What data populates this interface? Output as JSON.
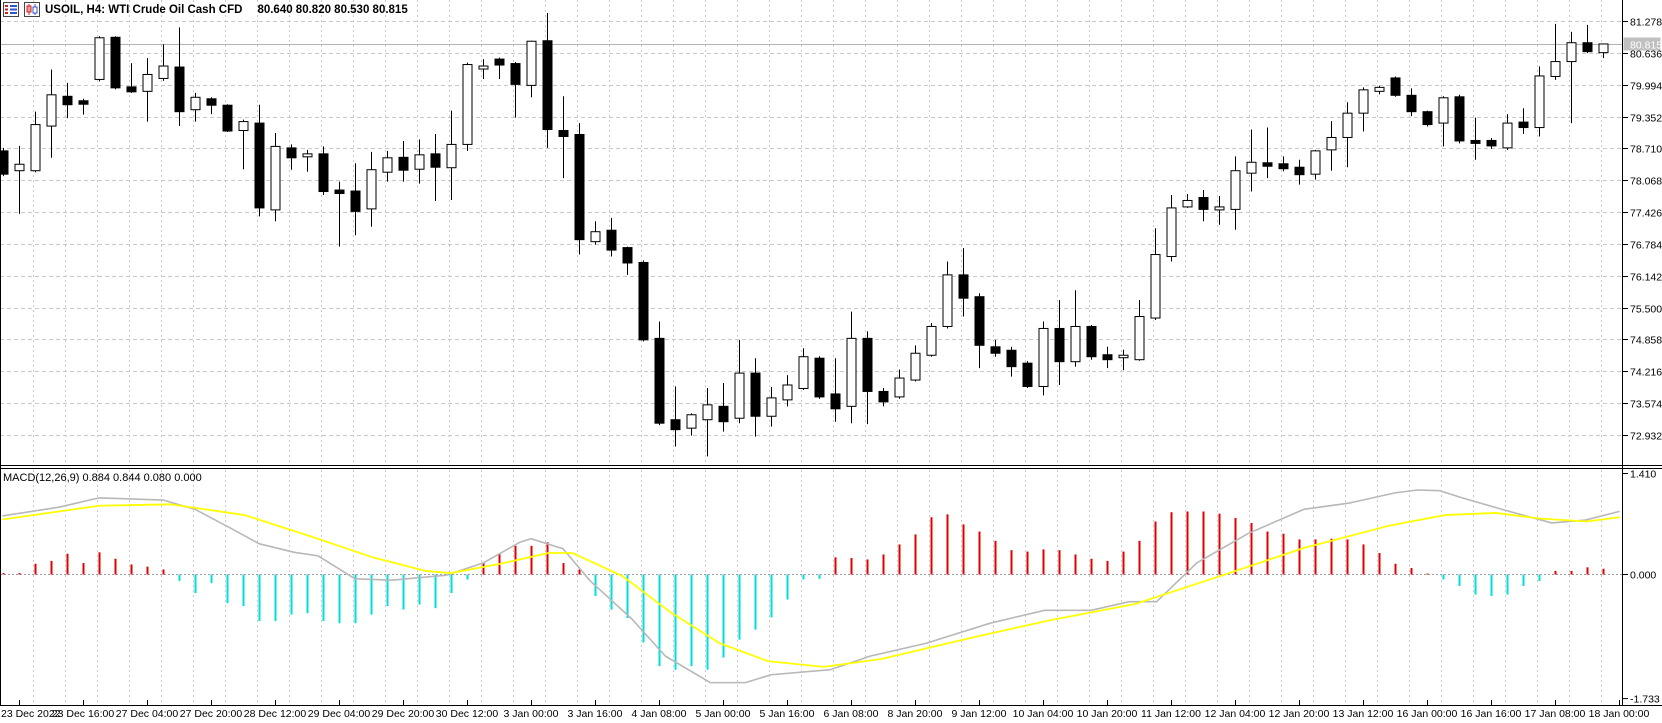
{
  "header": {
    "icons": [
      "quotes-list-icon",
      "candlestick-chart-icon"
    ],
    "symbol_info": "USOIL, H4: WTI Crude Oil Cash CFD",
    "ohlc_values": "80.640 80.820 80.530 80.815"
  },
  "indicator": {
    "label": "MACD(12,26,9) 0.884 0.844 0.080 0.000"
  },
  "price_axis": {
    "labels": [
      "81.278",
      "80.636",
      "79.994",
      "79.352",
      "78.710",
      "78.068",
      "77.426",
      "76.784",
      "76.142",
      "75.500",
      "74.858",
      "74.216",
      "73.574",
      "72.932"
    ],
    "current_label": "80.815"
  },
  "macd_axis": {
    "labels": [
      {
        "text": "1.410",
        "value": 1.41
      },
      {
        "text": "0.000",
        "value": 0.0
      },
      {
        "text": "-1.733",
        "value": -1.733
      }
    ]
  },
  "time_axis": {
    "labels": [
      "23 Dec 2022",
      "23 Dec 16:00",
      "27 Dec 04:00",
      "27 Dec 20:00",
      "28 Dec 12:00",
      "29 Dec 04:00",
      "29 Dec 20:00",
      "30 Dec 12:00",
      "3 Jan 00:00",
      "3 Jan 16:00",
      "4 Jan 08:00",
      "5 Jan 00:00",
      "5 Jan 16:00",
      "6 Jan 08:00",
      "8 Jan 20:00",
      "9 Jan 12:00",
      "10 Jan 04:00",
      "10 Jan 20:00",
      "11 Jan 12:00",
      "12 Jan 04:00",
      "12 Jan 20:00",
      "13 Jan 12:00",
      "16 Jan 00:00",
      "16 Jan 16:00",
      "17 Jan 08:00",
      "18 Jan 00:00"
    ]
  },
  "colors": {
    "background": "#ffffff",
    "grid": "#c9c9c9",
    "current_price_line": "#b3b3b3",
    "bull_body": "#ffffff",
    "bear_body": "#000000",
    "candle_outline": "#000000",
    "hist_positive": "#e00000",
    "hist_negative": "#00dede",
    "macd_line": "#b8b8b8",
    "signal_line": "#ffff00",
    "price_box_bg": "#c0c0c0",
    "price_box_text": "#ffffff",
    "axis_text": "#000000"
  },
  "chart_data": {
    "type": "candlestick+macd",
    "symbol": "USOIL",
    "timeframe": "H4",
    "description": "WTI Crude Oil Cash CFD",
    "current_bar": {
      "open": 80.64,
      "high": 80.82,
      "low": 80.53,
      "close": 80.815
    },
    "current_price": 80.815,
    "price_ylim": [
      72.29,
      81.47
    ],
    "macd_ylim": [
      -1.82,
      1.46
    ],
    "macd_settings": [
      12,
      26,
      9
    ],
    "macd_current_values": [
      0.884,
      0.844,
      0.08,
      0.0
    ],
    "candles_ohlc": [
      [
        78.66,
        78.72,
        78.15,
        78.19
      ],
      [
        78.26,
        78.76,
        77.39,
        78.39
      ],
      [
        78.26,
        79.45,
        78.23,
        79.19
      ],
      [
        79.16,
        80.3,
        78.52,
        79.79
      ],
      [
        79.76,
        80.03,
        79.32,
        79.59
      ],
      [
        79.67,
        79.71,
        79.39,
        79.6
      ],
      [
        80.1,
        80.97,
        80.06,
        80.94
      ],
      [
        80.95,
        80.97,
        79.9,
        79.93
      ],
      [
        79.95,
        80.43,
        79.83,
        79.85
      ],
      [
        79.86,
        80.53,
        79.25,
        80.2
      ],
      [
        80.12,
        80.81,
        80.07,
        80.37
      ],
      [
        80.35,
        81.15,
        79.16,
        79.45
      ],
      [
        79.49,
        79.83,
        79.25,
        79.74
      ],
      [
        79.71,
        79.74,
        79.4,
        79.58
      ],
      [
        79.58,
        79.6,
        79.04,
        79.06
      ],
      [
        79.07,
        79.29,
        78.29,
        79.25
      ],
      [
        79.22,
        79.59,
        77.34,
        77.51
      ],
      [
        77.47,
        79.02,
        77.24,
        78.75
      ],
      [
        78.72,
        78.79,
        78.28,
        78.52
      ],
      [
        78.54,
        78.68,
        78.24,
        78.6
      ],
      [
        78.6,
        78.75,
        77.77,
        77.84
      ],
      [
        77.87,
        78.04,
        76.73,
        77.8
      ],
      [
        77.85,
        78.41,
        76.96,
        77.44
      ],
      [
        77.49,
        78.64,
        77.13,
        78.28
      ],
      [
        78.23,
        78.66,
        78.04,
        78.52
      ],
      [
        78.53,
        78.86,
        78.04,
        78.27
      ],
      [
        78.29,
        78.89,
        78.0,
        78.58
      ],
      [
        78.6,
        79.0,
        77.65,
        78.33
      ],
      [
        78.32,
        79.47,
        77.67,
        78.79
      ],
      [
        78.79,
        80.44,
        78.66,
        80.4
      ],
      [
        80.31,
        80.51,
        80.11,
        80.37
      ],
      [
        80.51,
        80.54,
        80.11,
        80.39
      ],
      [
        80.42,
        80.45,
        79.33,
        80.0
      ],
      [
        79.98,
        80.88,
        79.74,
        80.87
      ],
      [
        80.88,
        81.44,
        78.72,
        79.09
      ],
      [
        79.07,
        79.76,
        78.11,
        78.95
      ],
      [
        78.99,
        79.22,
        76.57,
        76.87
      ],
      [
        76.83,
        77.24,
        76.77,
        77.03
      ],
      [
        77.06,
        77.31,
        76.53,
        76.66
      ],
      [
        76.71,
        76.73,
        76.16,
        76.4
      ],
      [
        76.41,
        76.45,
        74.82,
        74.85
      ],
      [
        74.88,
        75.22,
        73.13,
        73.17
      ],
      [
        73.24,
        73.91,
        72.7,
        73.04
      ],
      [
        73.07,
        73.37,
        72.92,
        73.34
      ],
      [
        73.24,
        73.88,
        72.5,
        73.54
      ],
      [
        73.51,
        73.98,
        73.0,
        73.2
      ],
      [
        73.27,
        74.85,
        73.17,
        74.18
      ],
      [
        74.18,
        74.48,
        72.9,
        73.31
      ],
      [
        73.31,
        73.9,
        73.1,
        73.68
      ],
      [
        73.64,
        74.14,
        73.51,
        73.94
      ],
      [
        73.87,
        74.68,
        73.84,
        74.51
      ],
      [
        74.48,
        74.52,
        73.66,
        73.7
      ],
      [
        73.76,
        74.48,
        73.2,
        73.46
      ],
      [
        73.51,
        75.42,
        73.17,
        74.88
      ],
      [
        74.88,
        75.02,
        73.15,
        73.81
      ],
      [
        73.81,
        73.88,
        73.51,
        73.6
      ],
      [
        73.7,
        74.25,
        73.66,
        74.08
      ],
      [
        74.04,
        74.74,
        74.01,
        74.58
      ],
      [
        74.54,
        75.19,
        74.51,
        75.12
      ],
      [
        75.12,
        76.43,
        75.08,
        76.16
      ],
      [
        76.16,
        76.7,
        75.32,
        75.69
      ],
      [
        75.72,
        75.79,
        74.28,
        74.74
      ],
      [
        74.71,
        74.85,
        74.51,
        74.58
      ],
      [
        74.64,
        74.71,
        74.11,
        74.31
      ],
      [
        74.38,
        74.42,
        73.88,
        73.91
      ],
      [
        73.91,
        75.22,
        73.73,
        75.08
      ],
      [
        75.08,
        75.65,
        73.94,
        74.41
      ],
      [
        74.41,
        75.85,
        74.31,
        75.12
      ],
      [
        75.12,
        75.15,
        74.45,
        74.51
      ],
      [
        74.55,
        74.71,
        74.28,
        74.45
      ],
      [
        74.49,
        74.65,
        74.24,
        74.54
      ],
      [
        74.45,
        75.65,
        74.43,
        75.32
      ],
      [
        75.29,
        77.1,
        75.25,
        76.57
      ],
      [
        76.53,
        77.77,
        76.43,
        77.51
      ],
      [
        77.53,
        77.79,
        77.51,
        77.66
      ],
      [
        77.72,
        77.87,
        77.24,
        77.48
      ],
      [
        77.47,
        77.75,
        77.17,
        77.53
      ],
      [
        77.48,
        78.55,
        77.07,
        78.26
      ],
      [
        78.21,
        79.09,
        77.84,
        78.43
      ],
      [
        78.42,
        79.13,
        78.11,
        78.35
      ],
      [
        78.4,
        78.55,
        78.25,
        78.3
      ],
      [
        78.33,
        78.48,
        77.98,
        78.18
      ],
      [
        78.19,
        78.68,
        78.08,
        78.66
      ],
      [
        78.68,
        79.26,
        78.26,
        78.93
      ],
      [
        78.93,
        79.64,
        78.33,
        79.42
      ],
      [
        79.42,
        79.94,
        79.05,
        79.89
      ],
      [
        79.86,
        79.97,
        79.8,
        79.94
      ],
      [
        80.13,
        80.16,
        79.75,
        79.78
      ],
      [
        79.78,
        79.92,
        79.36,
        79.45
      ],
      [
        79.45,
        79.47,
        79.15,
        79.19
      ],
      [
        79.22,
        79.76,
        78.75,
        79.73
      ],
      [
        79.75,
        79.79,
        78.81,
        78.86
      ],
      [
        78.87,
        79.33,
        78.48,
        78.81
      ],
      [
        78.87,
        78.92,
        78.7,
        78.76
      ],
      [
        78.72,
        79.4,
        78.68,
        79.22
      ],
      [
        79.24,
        79.52,
        79.0,
        79.13
      ],
      [
        79.13,
        80.36,
        78.95,
        80.17
      ],
      [
        80.16,
        81.22,
        80.09,
        80.46
      ],
      [
        80.46,
        81.06,
        79.22,
        80.84
      ],
      [
        80.84,
        81.2,
        80.63,
        80.66
      ],
      [
        80.64,
        80.82,
        80.53,
        80.815
      ]
    ],
    "macd_histogram": [
      0.02,
      0.02,
      0.15,
      0.19,
      0.29,
      0.16,
      0.31,
      0.22,
      0.14,
      0.11,
      0.07,
      -0.09,
      -0.26,
      -0.12,
      -0.4,
      -0.44,
      -0.65,
      -0.65,
      -0.56,
      -0.54,
      -0.65,
      -0.68,
      -0.68,
      -0.56,
      -0.44,
      -0.49,
      -0.42,
      -0.47,
      -0.26,
      -0.07,
      0.16,
      0.29,
      0.4,
      0.4,
      0.45,
      0.16,
      0.07,
      -0.3,
      -0.49,
      -0.61,
      -0.95,
      -1.28,
      -1.33,
      -1.28,
      -1.33,
      -1.16,
      -0.91,
      -0.77,
      -0.6,
      -0.35,
      -0.07,
      -0.06,
      0.24,
      0.23,
      0.21,
      0.28,
      0.42,
      0.56,
      0.8,
      0.84,
      0.7,
      0.6,
      0.47,
      0.34,
      0.32,
      0.35,
      0.34,
      0.28,
      0.22,
      0.19,
      0.32,
      0.47,
      0.74,
      0.87,
      0.88,
      0.88,
      0.85,
      0.79,
      0.72,
      0.6,
      0.57,
      0.49,
      0.49,
      0.5,
      0.49,
      0.42,
      0.3,
      0.15,
      0.09,
      0.0,
      -0.07,
      -0.16,
      -0.28,
      -0.3,
      -0.28,
      -0.16,
      -0.09,
      0.05,
      0.05,
      0.1,
      0.08
    ],
    "macd_line_points": [
      [
        0,
        0.82
      ],
      [
        3.5,
        0.94
      ],
      [
        6,
        1.07
      ],
      [
        10,
        1.04
      ],
      [
        12,
        0.91
      ],
      [
        14.2,
        0.65
      ],
      [
        16,
        0.43
      ],
      [
        18.2,
        0.31
      ],
      [
        19.7,
        0.26
      ],
      [
        22,
        -0.06
      ],
      [
        24.3,
        -0.08
      ],
      [
        27.7,
        -0.01
      ],
      [
        30,
        0.16
      ],
      [
        32.3,
        0.45
      ],
      [
        33,
        0.5
      ],
      [
        35,
        0.36
      ],
      [
        36.7,
        -0.09
      ],
      [
        39.3,
        -0.62
      ],
      [
        41.4,
        -1.14
      ],
      [
        44.2,
        -1.51
      ],
      [
        46.4,
        -1.51
      ],
      [
        48,
        -1.4
      ],
      [
        51.7,
        -1.33
      ],
      [
        54.2,
        -1.14
      ],
      [
        57.7,
        -0.96
      ],
      [
        61.7,
        -0.68
      ],
      [
        65.1,
        -0.5
      ],
      [
        68,
        -0.5
      ],
      [
        70.4,
        -0.38
      ],
      [
        72.1,
        -0.38
      ],
      [
        74.6,
        0.16
      ],
      [
        77.8,
        0.57
      ],
      [
        81.3,
        0.91
      ],
      [
        84.2,
        1.0
      ],
      [
        87,
        1.14
      ],
      [
        88.4,
        1.18
      ],
      [
        89.8,
        1.17
      ],
      [
        91.2,
        1.07
      ],
      [
        94,
        0.89
      ],
      [
        96.8,
        0.72
      ],
      [
        98.9,
        0.76
      ],
      [
        101,
        0.88
      ]
    ],
    "signal_line_points": [
      [
        0,
        0.77
      ],
      [
        6,
        0.96
      ],
      [
        10.5,
        0.98
      ],
      [
        15.1,
        0.83
      ],
      [
        19.4,
        0.52
      ],
      [
        23.1,
        0.24
      ],
      [
        26.4,
        0.05
      ],
      [
        28,
        0.02
      ],
      [
        31.1,
        0.15
      ],
      [
        34.1,
        0.3
      ],
      [
        35.6,
        0.3
      ],
      [
        38.7,
        -0.02
      ],
      [
        41.8,
        -0.54
      ],
      [
        44.8,
        -0.96
      ],
      [
        47.8,
        -1.21
      ],
      [
        51.3,
        -1.29
      ],
      [
        54.9,
        -1.18
      ],
      [
        60.2,
        -0.9
      ],
      [
        65.4,
        -0.64
      ],
      [
        70.8,
        -0.41
      ],
      [
        76.1,
        -0.02
      ],
      [
        81.3,
        0.37
      ],
      [
        86.6,
        0.68
      ],
      [
        90.1,
        0.83
      ],
      [
        93.3,
        0.86
      ],
      [
        96.1,
        0.78
      ],
      [
        99,
        0.74
      ],
      [
        101,
        0.8
      ]
    ]
  }
}
